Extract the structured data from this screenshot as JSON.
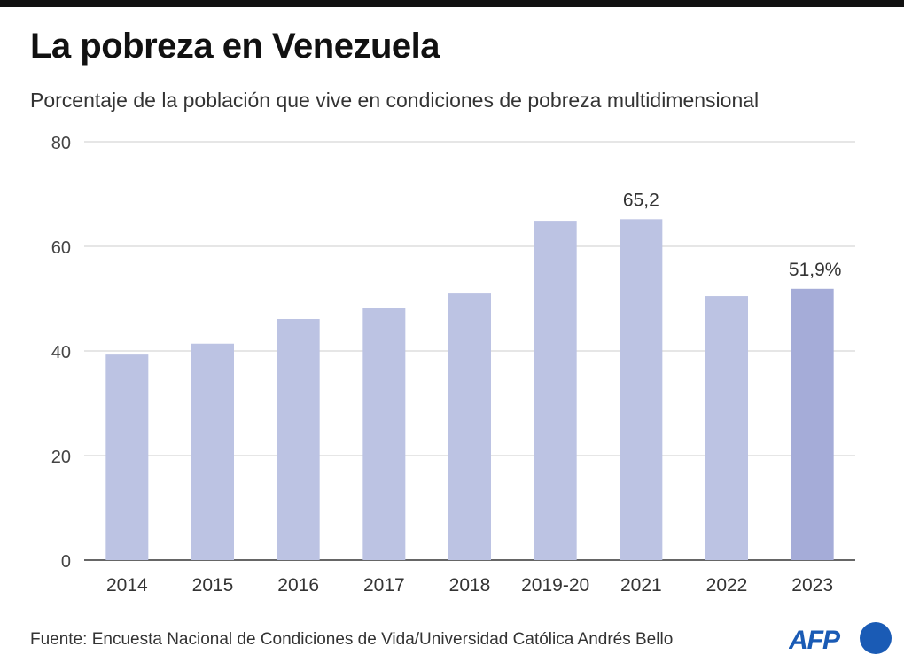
{
  "title": "La pobreza en Venezuela",
  "subtitle": "Porcentaje de la población que vive en condiciones de pobreza multidimensional",
  "source": "Fuente: Encuesta Nacional de Condiciones de Vida/Universidad Católica Andrés Bello",
  "logo_text": "AFP",
  "colors": {
    "bar": "#bcc3e3",
    "bar_highlight": "#a5acd8",
    "grid": "#cccccc",
    "logo": "#1a5bb5"
  },
  "chart_data": {
    "type": "bar",
    "categories": [
      "2014",
      "2015",
      "2016",
      "2017",
      "2018",
      "2019-20",
      "2021",
      "2022",
      "2023"
    ],
    "values": [
      39.3,
      41.4,
      46.1,
      48.3,
      51.0,
      64.9,
      65.2,
      50.5,
      51.9
    ],
    "data_labels": [
      {
        "category": "2021",
        "text": "65,2"
      },
      {
        "category": "2023",
        "text": "51,9%"
      }
    ],
    "highlight": "2023",
    "ylim": [
      0,
      80
    ],
    "yticks": [
      "0",
      "20",
      "40",
      "60",
      "80"
    ],
    "grid": true,
    "xlabel": "",
    "ylabel": ""
  }
}
